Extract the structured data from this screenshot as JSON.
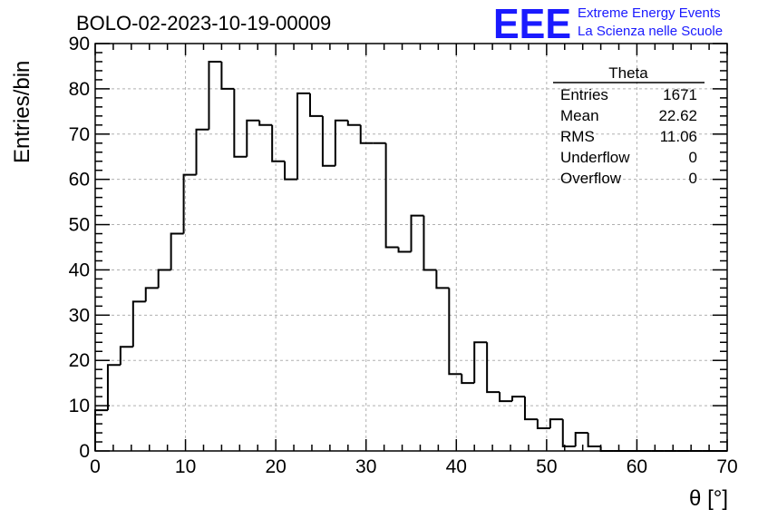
{
  "chart_data": {
    "type": "bar",
    "style": "step-histogram",
    "title": "BOLO-02-2023-10-19-00009",
    "xlabel": "θ [°]",
    "ylabel": "Entries/bin",
    "xlim": [
      0,
      70
    ],
    "ylim": [
      0,
      90
    ],
    "bin_width": 1.4,
    "x_ticks": [
      0,
      10,
      20,
      30,
      40,
      50,
      60,
      70
    ],
    "y_ticks": [
      0,
      10,
      20,
      30,
      40,
      50,
      60,
      70,
      80,
      90
    ],
    "grid": true,
    "bin_edges_start": 0,
    "values": [
      9,
      19,
      23,
      33,
      36,
      40,
      48,
      61,
      71,
      86,
      80,
      65,
      73,
      72,
      64,
      60,
      79,
      74,
      63,
      73,
      72,
      68,
      68,
      45,
      44,
      52,
      40,
      36,
      17,
      15,
      24,
      13,
      11,
      12,
      7,
      5,
      7,
      1,
      4,
      1,
      0,
      0,
      0,
      0,
      0,
      0,
      0,
      0,
      0,
      0
    ],
    "line_color": "#000000",
    "grid_color": "#b0b0b0"
  },
  "stats_box": {
    "name": "Theta",
    "rows": [
      {
        "label": "Entries",
        "value": "1671"
      },
      {
        "label": "Mean",
        "value": "22.62"
      },
      {
        "label": "RMS",
        "value": "11.06"
      },
      {
        "label": "Underflow",
        "value": "0"
      },
      {
        "label": "Overflow",
        "value": "0"
      }
    ]
  },
  "logo": {
    "mark": "EEE",
    "line1": "Extreme Energy Events",
    "line2": "La Scienza nelle Scuole",
    "color": "#1a1aff"
  }
}
